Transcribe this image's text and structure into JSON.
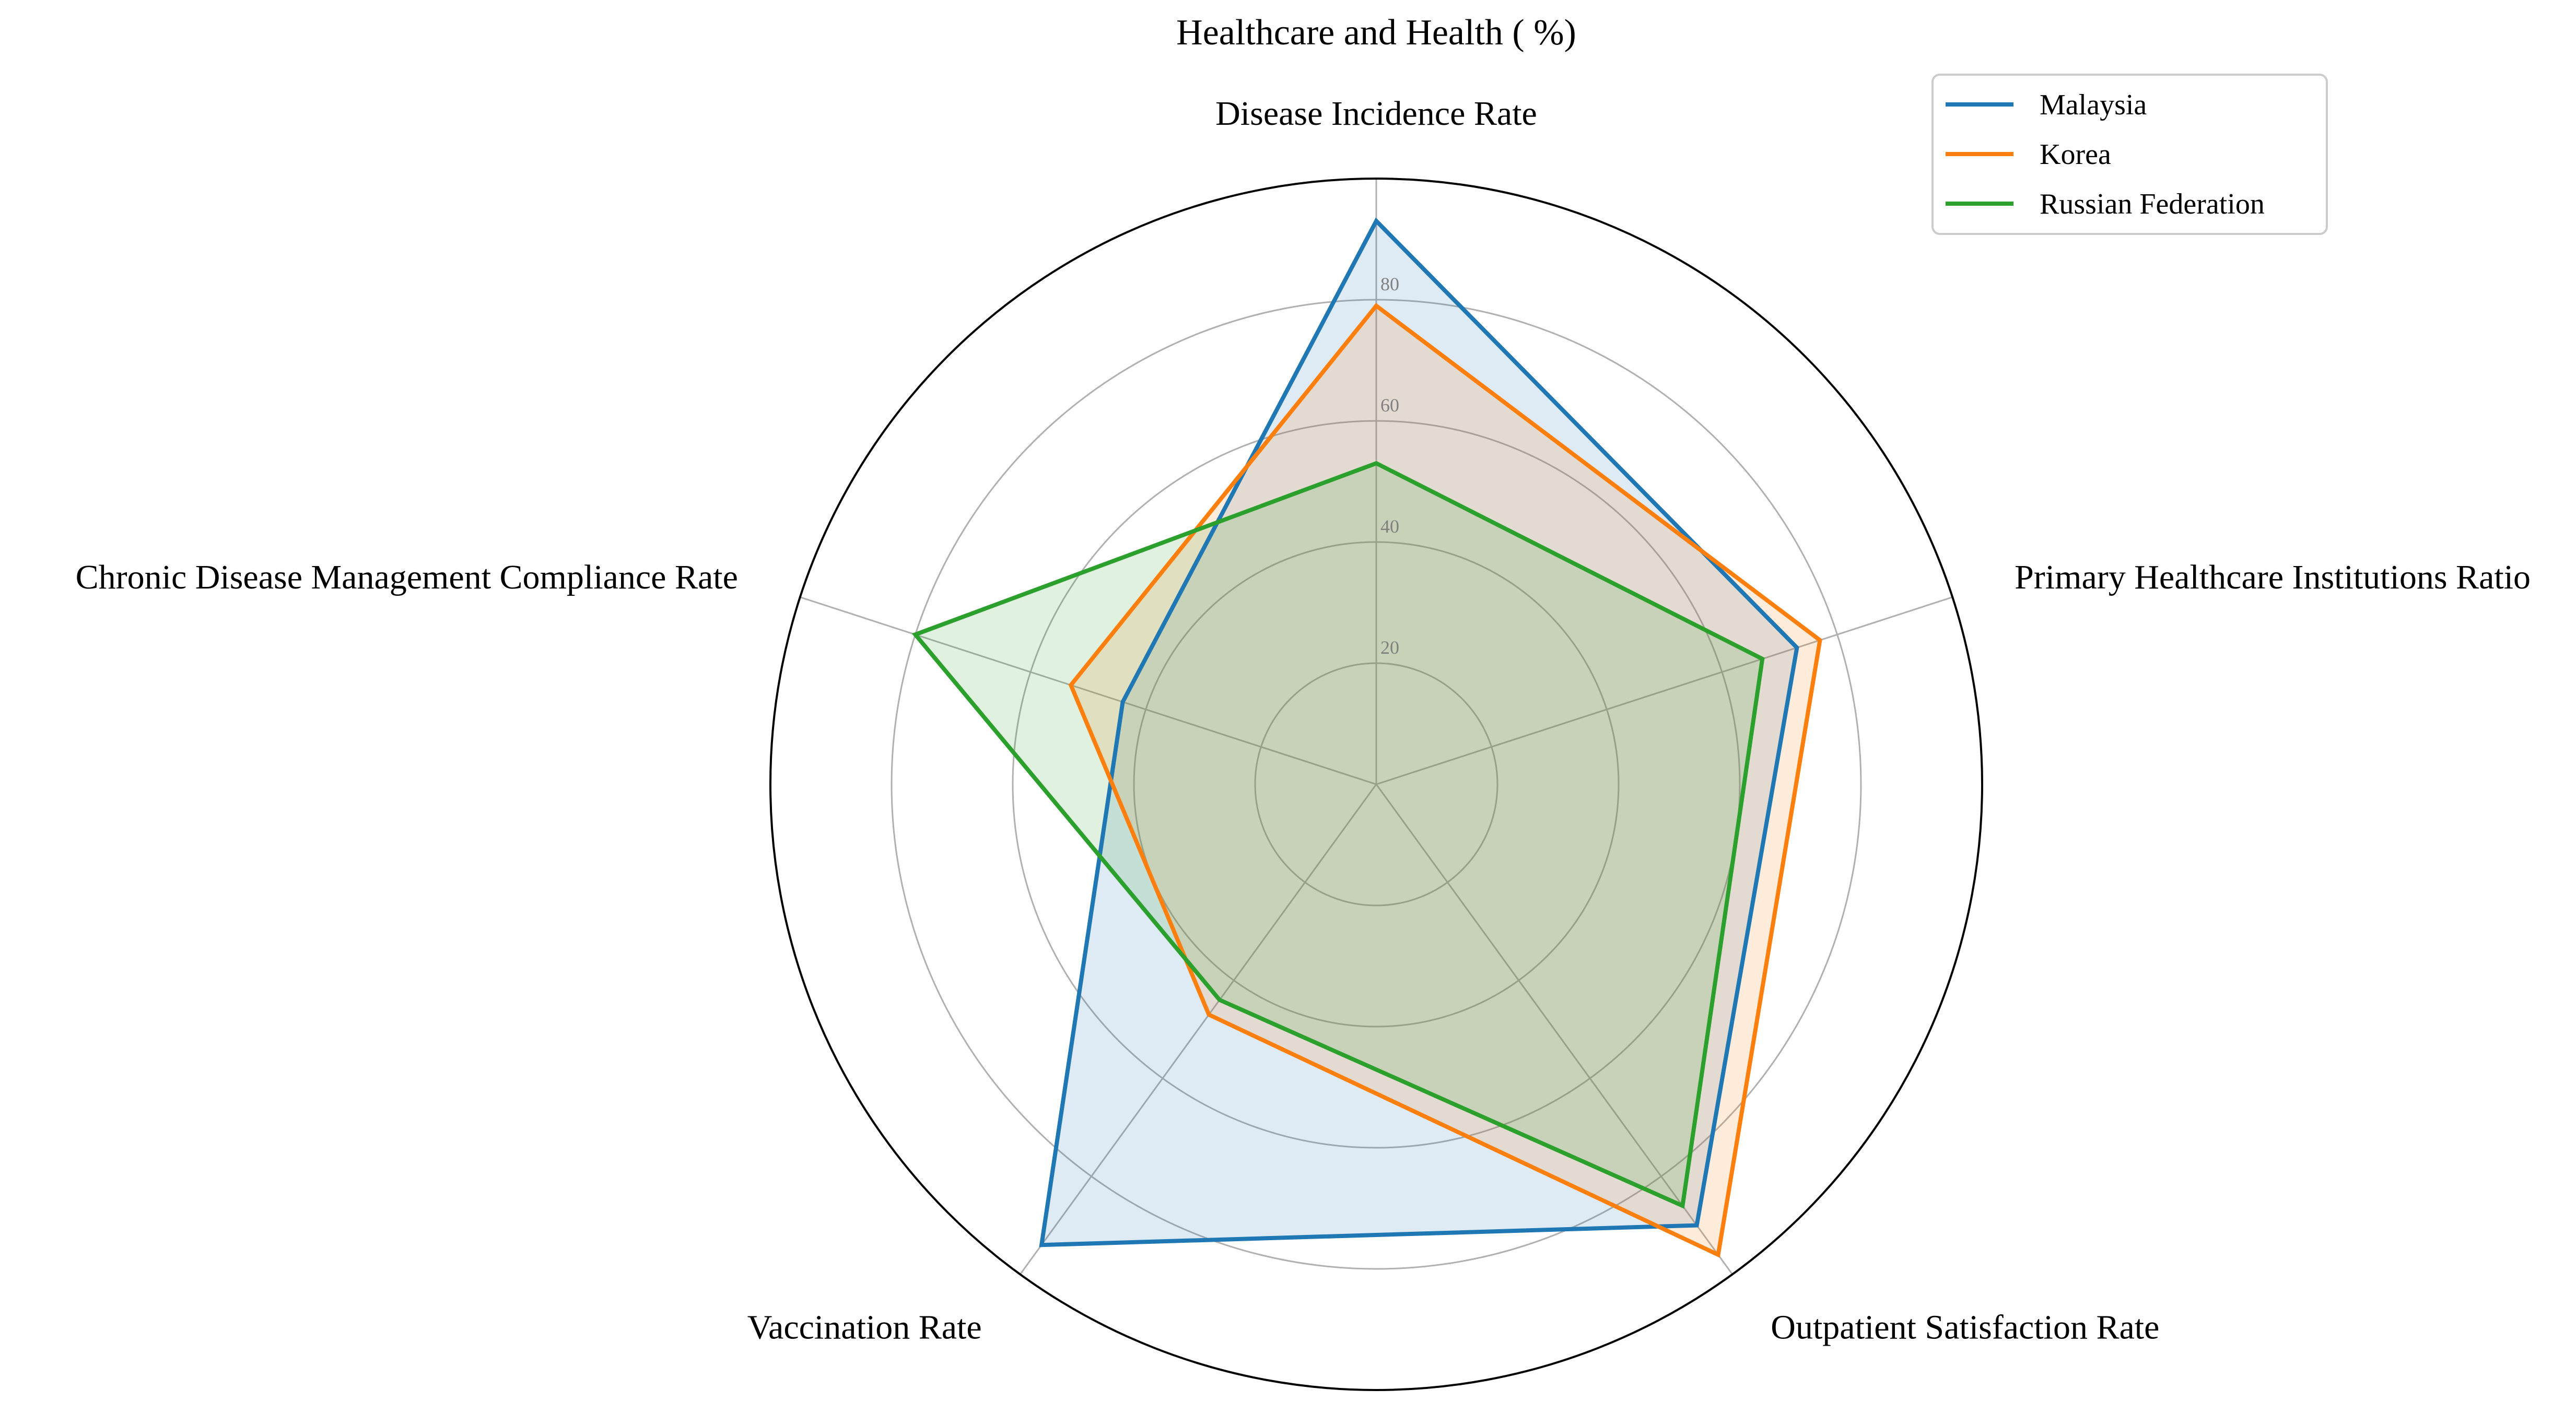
{
  "chart_data": {
    "type": "radar",
    "title": "Healthcare and Health ( %)",
    "axes": [
      "Disease Incidence Rate",
      "Primary Healthcare Institutions Ratio",
      "Outpatient Satisfaction Rate",
      "Vaccination Rate",
      "Chronic Disease Management Compliance Rate"
    ],
    "rlim": [
      0,
      100
    ],
    "rticks": [
      20,
      40,
      60,
      80
    ],
    "rtick_labels": [
      "20",
      "40",
      "60",
      "80"
    ],
    "grid": true,
    "legend_position": "top-right",
    "series": [
      {
        "name": "Malaysia",
        "color": "#1f77b4",
        "values": [
          93,
          73,
          90,
          94,
          44
        ]
      },
      {
        "name": "Korea",
        "color": "#ff7f0e",
        "values": [
          79,
          77,
          96,
          47,
          53
        ]
      },
      {
        "name": "Russian Federation",
        "color": "#2ca02c",
        "values": [
          53,
          67,
          86,
          44,
          80
        ]
      }
    ]
  }
}
